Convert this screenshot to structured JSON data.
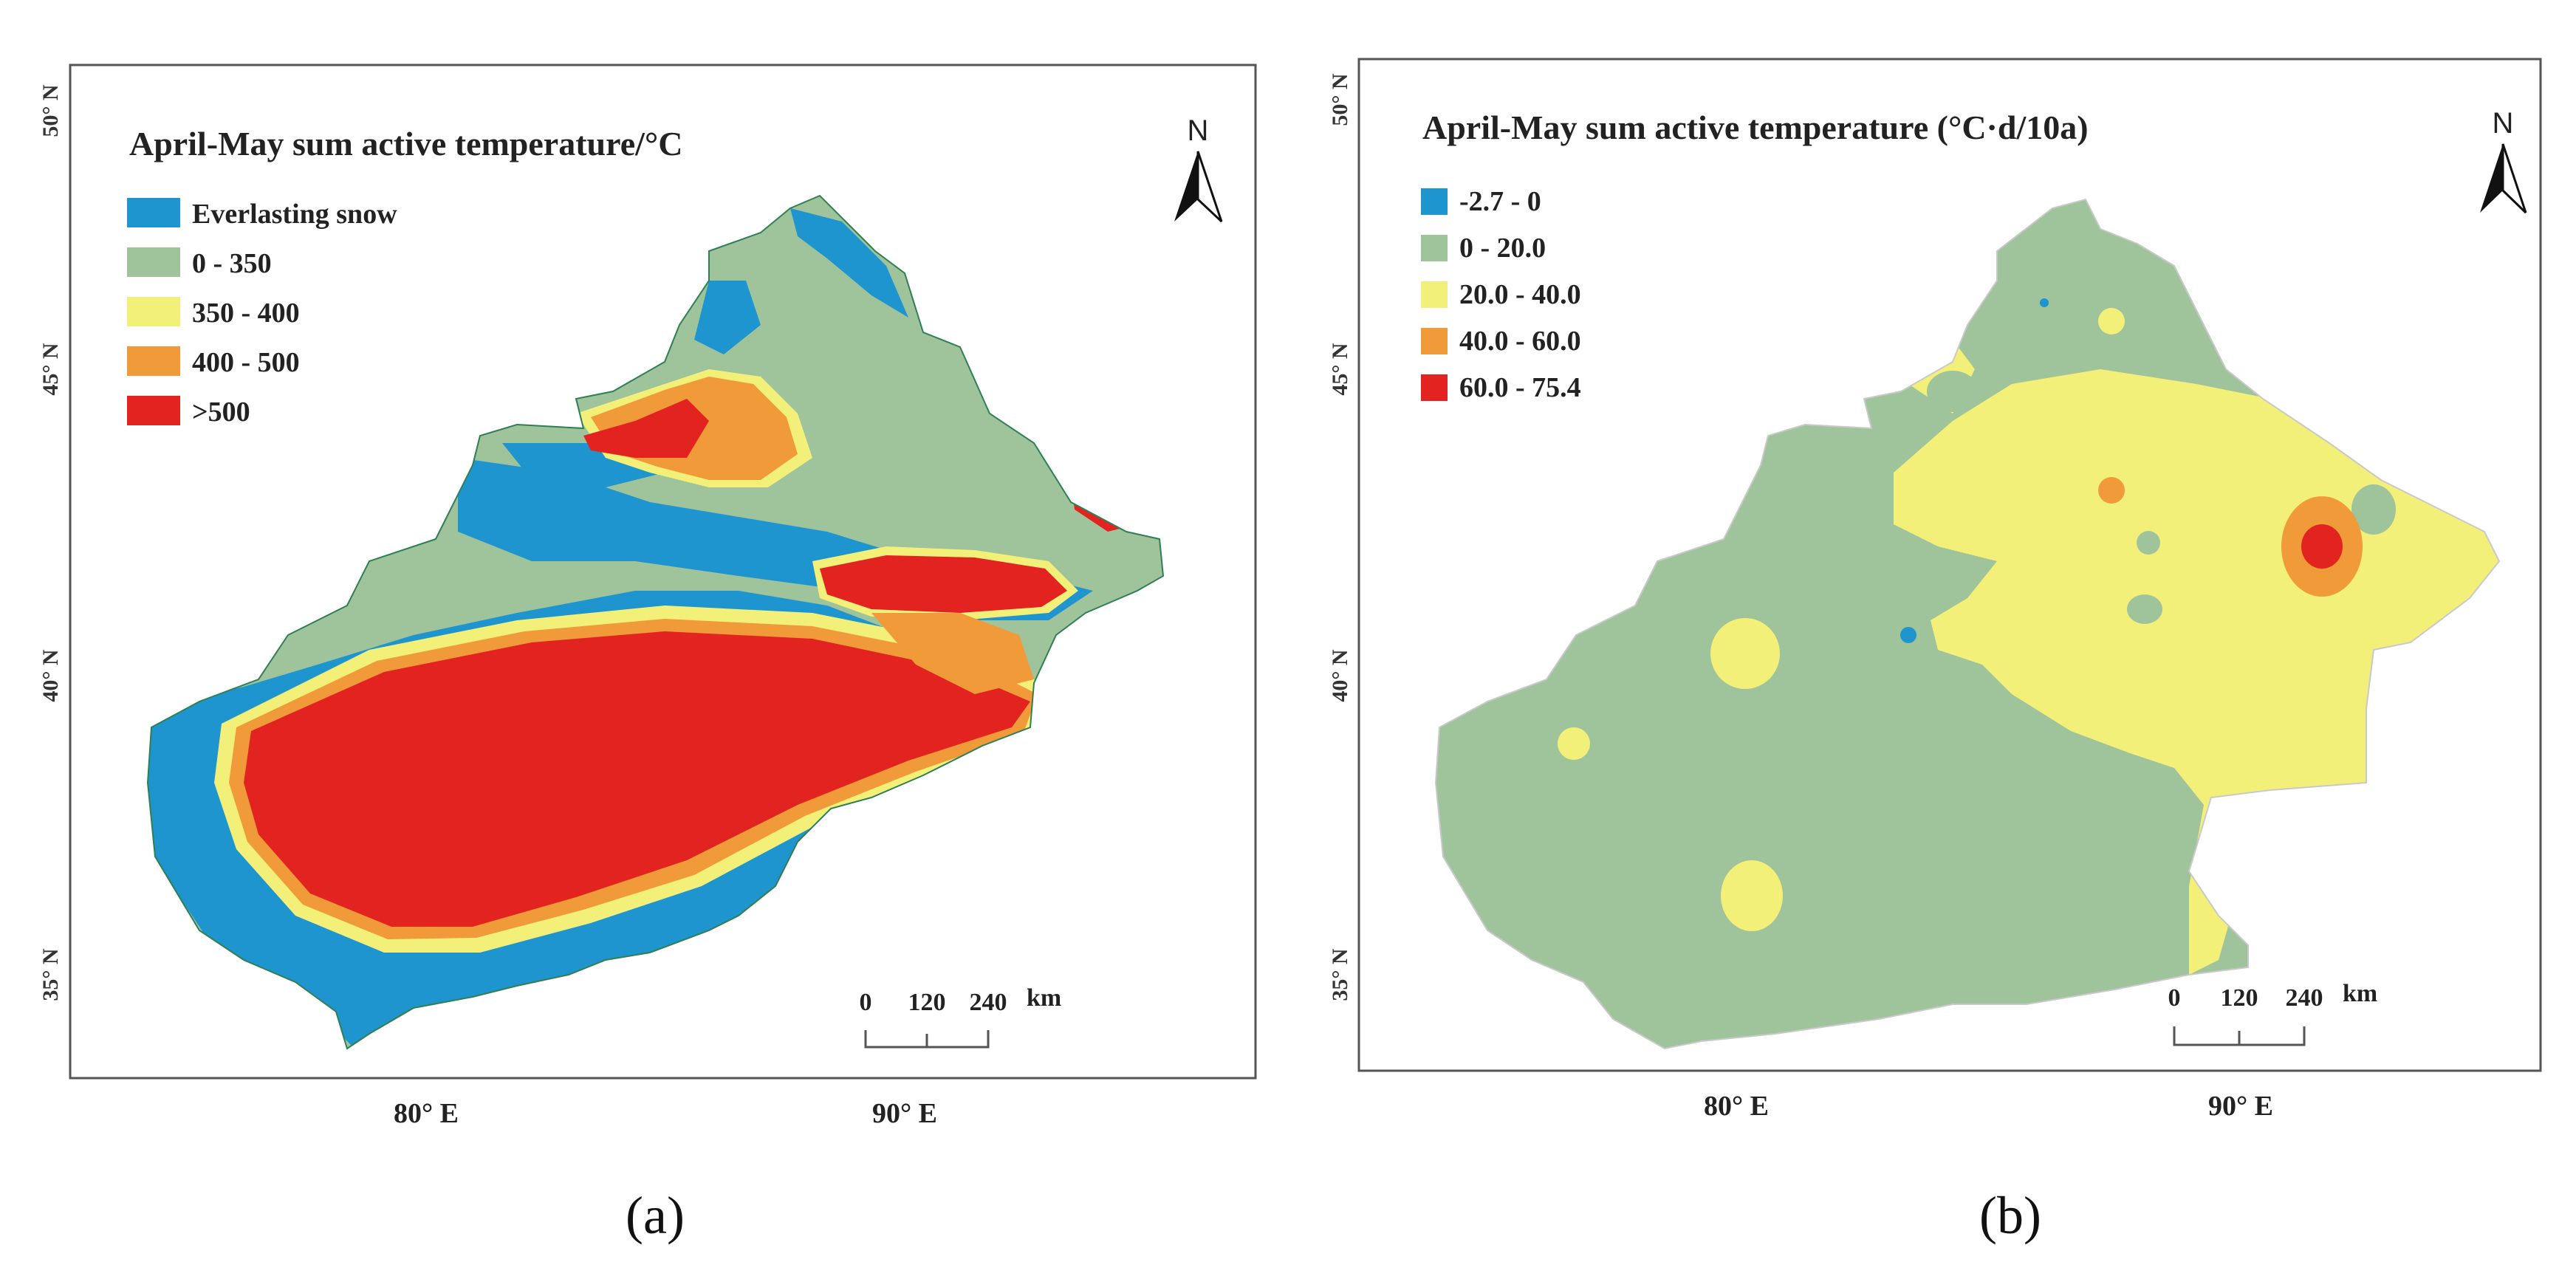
{
  "panels": [
    {
      "caption": "(a)",
      "legend_title": "April-May sum active temperature/°C",
      "legend": [
        {
          "label": "Everlasting snow",
          "color": "#1f95cf"
        },
        {
          "label": "0 - 350",
          "color": "#9fc39a"
        },
        {
          "label": "350 - 400",
          "color": "#f3f07a"
        },
        {
          "label": "400 - 500",
          "color": "#f19a3a"
        },
        {
          "label": ">500",
          "color": "#e2231f"
        }
      ],
      "y_ticks": [
        "50° N",
        "45° N",
        "40° N",
        "35° N"
      ],
      "x_ticks": [
        "80° E",
        "90° E"
      ],
      "north": "N",
      "scalebar": {
        "labels": [
          "0",
          "120",
          "240"
        ],
        "unit": "km"
      }
    },
    {
      "caption": "(b)",
      "legend_title": "April-May sum active temperature (°C·d/10a)",
      "legend": [
        {
          "label": "-2.7 - 0",
          "color": "#1f95cf"
        },
        {
          "label": "0 - 20.0",
          "color": "#9fc39a"
        },
        {
          "label": "20.0 - 40.0",
          "color": "#f3f07a"
        },
        {
          "label": "40.0 - 60.0",
          "color": "#f19a3a"
        },
        {
          "label": "60.0 - 75.4",
          "color": "#e2231f"
        }
      ],
      "y_ticks": [
        "50° N",
        "45° N",
        "40° N",
        "35° N"
      ],
      "x_ticks": [
        "80° E",
        "90° E"
      ],
      "north": "N",
      "scalebar": {
        "labels": [
          "0",
          "120",
          "240"
        ],
        "unit": "km"
      }
    }
  ]
}
